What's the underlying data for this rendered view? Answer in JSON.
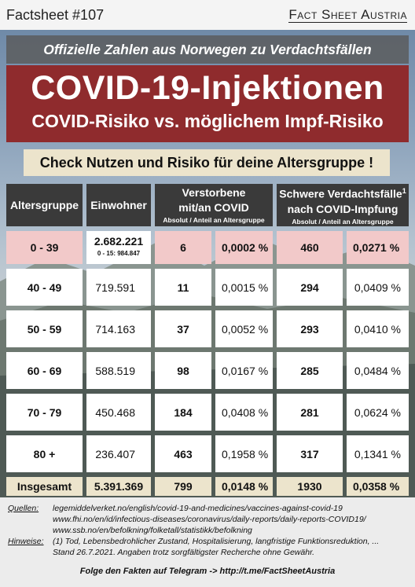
{
  "header": {
    "factsheet_id": "Factsheet #107",
    "brand": "Fact Sheet Austria"
  },
  "banner": {
    "top_prefix": "Offizielle Zahlen aus",
    "top_highlight": "Norwegen",
    "top_suffix": "zu Verdachtsfällen",
    "title": "COVID-19-Injektionen",
    "subtitle": "COVID-Risiko vs. möglichem Impf-Risiko",
    "call_to_action": "Check Nutzen und Risiko für deine Altersgruppe !"
  },
  "table": {
    "headers": {
      "age": "Altersgruppe",
      "population": "Einwohner",
      "deaths_line1": "Verstorbene",
      "deaths_line2": "mit/an COVID",
      "deaths_sub": "Absolut / Anteil an Altersgruppe",
      "severe_line1": "Schwere Verdachtsfälle",
      "severe_sup": "1",
      "severe_line2": "nach COVID-Impfung",
      "severe_sub": "Absolut / Anteil an Altersgruppe"
    },
    "rows": [
      {
        "age": "0 - 39",
        "population": "2.682.221",
        "population_note": "0 - 15: 984.847",
        "deaths": "6",
        "deaths_pct": "0,0002 %",
        "severe": "460",
        "severe_pct": "0,0271 %"
      },
      {
        "age": "40 - 49",
        "population": "719.591",
        "deaths": "11",
        "deaths_pct": "0,0015 %",
        "severe": "294",
        "severe_pct": "0,0409 %"
      },
      {
        "age": "50 - 59",
        "population": "714.163",
        "deaths": "37",
        "deaths_pct": "0,0052 %",
        "severe": "293",
        "severe_pct": "0,0410 %"
      },
      {
        "age": "60 - 69",
        "population": "588.519",
        "deaths": "98",
        "deaths_pct": "0,0167 %",
        "severe": "285",
        "severe_pct": "0,0484 %"
      },
      {
        "age": "70 - 79",
        "population": "450.468",
        "deaths": "184",
        "deaths_pct": "0,0408 %",
        "severe": "281",
        "severe_pct": "0,0624 %"
      },
      {
        "age": "80 +",
        "population": "236.407",
        "deaths": "463",
        "deaths_pct": "0,1958 %",
        "severe": "317",
        "severe_pct": "0,1341 %"
      }
    ],
    "total": {
      "age": "Insgesamt",
      "population": "5.391.369",
      "deaths": "799",
      "deaths_pct": "0,0148 %",
      "severe": "1930",
      "severe_pct": "0,0358 %"
    }
  },
  "footer": {
    "sources_label": "Quellen:",
    "sources": [
      "legemiddelverket.no/english/covid-19-and-medicines/vaccines-against-covid-19",
      "www.fhi.no/en/id/infectious-diseases/coronavirus/daily-reports/daily-reports-COVID19/",
      "www.ssb.no/en/befolkning/folketall/statistikk/befolkning"
    ],
    "hints_label": "Hinweise:",
    "hints": [
      "(1) Tod, Lebensbedrohlicher Zustand, Hospitalisierung, langfristige Funktionsreduktion, ...",
      "Stand 26.7.2021. Angaben trotz sorgfältigster Recherche ohne Gewähr."
    ],
    "telegram": "Folge den Fakten auf Telegram  ->  http://t.me/FactSheetAustria"
  }
}
